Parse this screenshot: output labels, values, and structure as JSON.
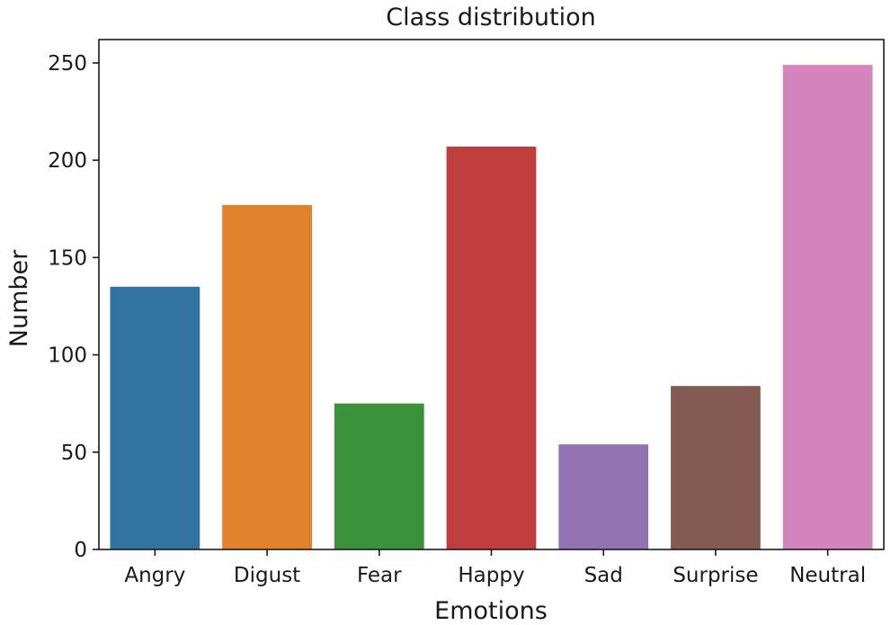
{
  "chart_data": {
    "type": "bar",
    "title": "Class distribution",
    "xlabel": "Emotions",
    "ylabel": "Number",
    "categories": [
      "Angry",
      "Digust",
      "Fear",
      "Happy",
      "Sad",
      "Surprise",
      "Neutral"
    ],
    "values": [
      135,
      177,
      75,
      207,
      54,
      84,
      249
    ],
    "colors": [
      "#3274a1",
      "#e1812c",
      "#3a923a",
      "#c03d3e",
      "#9372b2",
      "#845b53",
      "#d684bd"
    ],
    "ylim": [
      0,
      262
    ],
    "yticks": [
      0,
      50,
      100,
      150,
      200,
      250
    ],
    "grid": false,
    "legend": "none"
  }
}
